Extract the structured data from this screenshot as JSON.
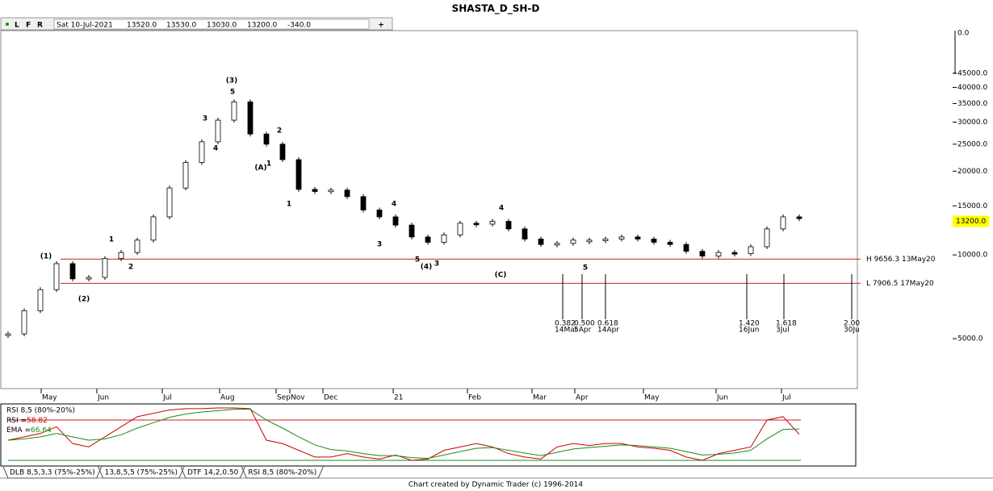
{
  "title": "SHASTA_D_SH-D",
  "toolbar": {
    "flags": [
      "L",
      "F",
      "R"
    ],
    "date": "Sat 10-Jul-2021",
    "open": "13520.0",
    "high": "13530.0",
    "low": "13030.0",
    "close": "13200.0",
    "change": "-340.0",
    "plus": "+"
  },
  "chart_data": [
    {
      "type": "candlestick",
      "log_scale": true,
      "values": [
        5200,
        6300,
        7500,
        9300,
        8200,
        8300,
        9700,
        10200,
        11300,
        13700,
        17400,
        21500,
        25500,
        30500,
        35500,
        27200,
        25000,
        22000,
        17200,
        16900,
        17100,
        16200,
        14500,
        13700,
        12800,
        11600,
        11100,
        11800,
        13000,
        12900,
        13200,
        12400,
        11400,
        10900,
        11000,
        11300,
        11300,
        11400,
        11600,
        11400,
        11100,
        10900,
        10300,
        9900,
        10200,
        10100,
        10700,
        12400,
        13700,
        13500
      ],
      "ylim": [
        3350,
        64000
      ],
      "yticks": [
        {
          "value": 45000,
          "label": "45000.0"
        },
        {
          "value": 40000,
          "label": "40000.0"
        },
        {
          "value": 35000,
          "label": "35000.0"
        },
        {
          "value": 30000,
          "label": "30000.0"
        },
        {
          "value": 25000,
          "label": "25000.0"
        },
        {
          "value": 20000,
          "label": "20000.0"
        },
        {
          "value": 15000,
          "label": "15000.0"
        },
        {
          "value": 10000,
          "label": "10000.0"
        },
        {
          "value": 5000,
          "label": "5000.0"
        }
      ],
      "top_label": "0.0",
      "last_price": {
        "value": 13200,
        "label": "13200.0"
      },
      "x_labels": [
        "May",
        "Jun",
        "Jul",
        "Aug",
        "Sep",
        "Nov",
        "Dec",
        "21",
        "Feb",
        "Mar",
        "Apr",
        "May",
        "Jun",
        "Jul"
      ],
      "levels": [
        {
          "value": 9656.3,
          "label": "H 9656.3 13May20"
        },
        {
          "value": 7906.5,
          "label": "L 7906.5 17May20"
        }
      ],
      "fib_lines": [
        {
          "ratio": "0.382",
          "date": "14Mar"
        },
        {
          "ratio": "0.500",
          "date": "5Apr"
        },
        {
          "ratio": "0.618",
          "date": "14Apr"
        },
        {
          "ratio": "1.420",
          "date": "16Jun"
        },
        {
          "ratio": "1.618",
          "date": "3Jul"
        },
        {
          "ratio": "2.00",
          "date": "30Ju"
        }
      ],
      "annotations": [
        {
          "text": "(1)",
          "color": "#000000"
        },
        {
          "text": "(2)",
          "color": "#000000"
        },
        {
          "text": "(3)",
          "color": "#000000"
        },
        {
          "text": "(4)",
          "color": "#000000"
        },
        {
          "text": "(A)",
          "color": "#7a1a1a"
        },
        {
          "text": "(C)",
          "color": "#7a1a1a"
        },
        {
          "text": "1",
          "color": "#1a8a1a"
        },
        {
          "text": "2",
          "color": "#1a8a1a"
        },
        {
          "text": "3",
          "color": "#1a8a1a"
        },
        {
          "text": "4",
          "color": "#1a8a1a"
        },
        {
          "text": "5",
          "color": "#1a8a1a"
        },
        {
          "text": "2",
          "color": "#1a8a1a"
        },
        {
          "text": "1",
          "color": "#1a8a1a"
        },
        {
          "text": "2",
          "color": "#2a2a9a"
        },
        {
          "text": "1",
          "color": "#2a2a9a"
        },
        {
          "text": "3",
          "color": "#2a2a9a"
        },
        {
          "text": "4",
          "color": "#2a2a9a"
        },
        {
          "text": "5",
          "color": "#2a2a9a"
        },
        {
          "text": "3",
          "color": "#1a8a1a"
        },
        {
          "text": "4",
          "color": "#1a8a1a"
        },
        {
          "text": "5",
          "color": "#1a8a1a"
        }
      ]
    },
    {
      "type": "line",
      "title": "RSI 8,5 (80%-20%)",
      "ylim": [
        12.8,
        102.8
      ],
      "bands": [
        80,
        20
      ],
      "series": [
        {
          "name": "RSI =",
          "color": "#cc0000",
          "values": [
            50,
            55,
            60,
            70,
            45,
            40,
            55,
            70,
            85,
            90,
            95,
            97,
            97,
            98,
            98,
            97,
            50,
            45,
            35,
            25,
            25,
            30,
            25,
            22,
            28,
            20,
            22,
            35,
            40,
            45,
            40,
            30,
            25,
            22,
            40,
            45,
            42,
            45,
            45,
            40,
            38,
            35,
            25,
            20,
            30,
            35,
            40,
            80,
            85,
            58.82
          ]
        },
        {
          "name": "EMA =",
          "color": "#1a8a1a",
          "values": [
            50,
            52,
            55,
            60,
            55,
            50,
            52,
            58,
            68,
            76,
            84,
            89,
            92,
            94,
            96,
            96,
            80,
            68,
            55,
            43,
            36,
            34,
            30,
            27,
            27,
            24,
            23,
            28,
            33,
            38,
            39,
            35,
            31,
            27,
            32,
            37,
            39,
            41,
            43,
            42,
            40,
            38,
            33,
            28,
            29,
            31,
            35,
            52,
            66,
            66.64
          ]
        }
      ]
    }
  ],
  "tabs": [
    "DLB 8,5,3,3 (75%-25%)",
    "13,8,5,5 (75%-25%)",
    "DTF 14,2,0.50",
    "RSI 8,5 (80%-20%)"
  ],
  "footer": "Chart created by Dynamic Trader (c) 1996-2014"
}
